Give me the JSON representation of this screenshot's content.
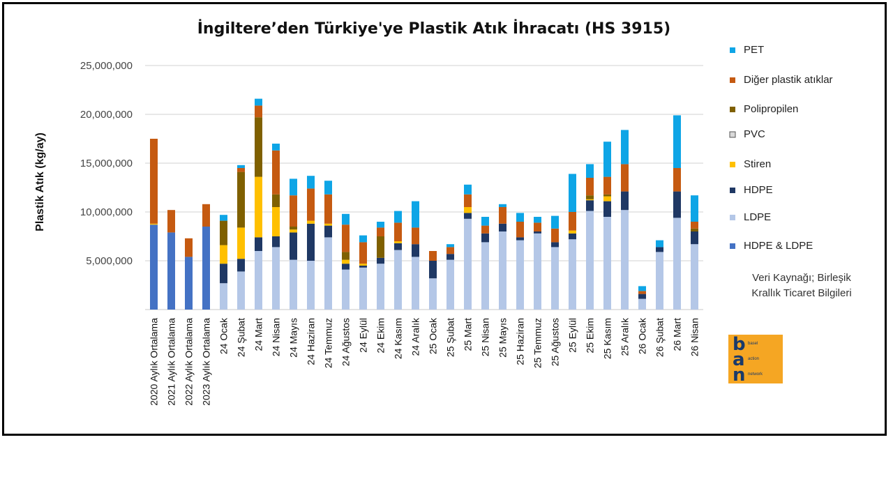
{
  "chart_data": {
    "type": "bar",
    "stacked": true,
    "title": "İngiltere’den Türkiye'ye Plastik Atık İhracatı (HS 3915)",
    "ylabel": "Plastik Atık (kg/ay)",
    "xlabel": "",
    "ylim": [
      0,
      25000000
    ],
    "yticks": [
      5000000,
      10000000,
      15000000,
      20000000,
      25000000
    ],
    "ytick_labels": [
      "5,000,000",
      "10,000,000",
      "15,000,000",
      "20,000,000",
      "25,000,000"
    ],
    "grid": true,
    "legend_position": "right",
    "categories": [
      "2020 Aylık Ortalama",
      "2021 Aylık Ortalama",
      "2022 Aylık Ortalama",
      "2023 Aylık Ortalama",
      "24 Ocak",
      "24 Şubat",
      "24 Mart",
      "24 Nisan",
      "24 Mayıs",
      "24 Haziran",
      "24 Temmuz",
      "24 Ağustos",
      "24 Eylül",
      "24 Ekim",
      "24 Kasım",
      "24 Aralık",
      "25 Ocak",
      "25 Şubat",
      "25 Mart",
      "25 Nisan",
      "25 Mayıs",
      "25 Haziran",
      "25 Temmuz",
      "25 Ağustos",
      "25 Eylül",
      "25 Ekim",
      "25 Kasım",
      "25 Aralık",
      "26 Ocak",
      "26 Şubat",
      "26 Mart",
      "26 Nisan"
    ],
    "series": [
      {
        "name": "HDPE & LDPE",
        "color": "#4472c4",
        "values": [
          8700000,
          7900000,
          5400000,
          8500000,
          0,
          0,
          0,
          0,
          0,
          0,
          0,
          0,
          0,
          0,
          0,
          0,
          0,
          0,
          0,
          0,
          0,
          0,
          0,
          0,
          0,
          0,
          0,
          0,
          0,
          0,
          0,
          0
        ]
      },
      {
        "name": "LDPE",
        "color": "#b4c7e7",
        "values": [
          0,
          0,
          0,
          0,
          2700000,
          3900000,
          6000000,
          6400000,
          5100000,
          5000000,
          7400000,
          4100000,
          4300000,
          4700000,
          6100000,
          5400000,
          3200000,
          5100000,
          9300000,
          6900000,
          8000000,
          7100000,
          7800000,
          6400000,
          7200000,
          10100000,
          9500000,
          10200000,
          1100000,
          5900000,
          9400000,
          6700000
        ]
      },
      {
        "name": "HDPE",
        "color": "#1f3864",
        "values": [
          0,
          0,
          0,
          0,
          2000000,
          1300000,
          1400000,
          1100000,
          2800000,
          3800000,
          1200000,
          600000,
          200000,
          600000,
          700000,
          1300000,
          1800000,
          600000,
          600000,
          900000,
          800000,
          300000,
          200000,
          500000,
          600000,
          1100000,
          1600000,
          1900000,
          500000,
          500000,
          2700000,
          1300000
        ]
      },
      {
        "name": "Stiren",
        "color": "#ffc000",
        "values": [
          100000,
          0,
          0,
          0,
          1900000,
          3200000,
          6200000,
          3000000,
          300000,
          300000,
          200000,
          400000,
          200000,
          0,
          200000,
          0,
          0,
          0,
          600000,
          0,
          0,
          0,
          0,
          0,
          300000,
          100000,
          500000,
          0,
          0,
          0,
          0,
          0
        ]
      },
      {
        "name": "PVC",
        "color": "#d9d9d9",
        "values": [
          0,
          0,
          0,
          0,
          0,
          0,
          0,
          0,
          0,
          0,
          0,
          0,
          0,
          0,
          0,
          0,
          0,
          0,
          0,
          0,
          0,
          0,
          0,
          0,
          0,
          0,
          0,
          0,
          0,
          0,
          0,
          0
        ]
      },
      {
        "name": "Polipropilen",
        "color": "#7f6000",
        "values": [
          0,
          0,
          0,
          0,
          2500000,
          5700000,
          6100000,
          1300000,
          300000,
          0,
          0,
          800000,
          0,
          2200000,
          0,
          0,
          0,
          0,
          0,
          0,
          0,
          0,
          0,
          0,
          0,
          400000,
          200000,
          0,
          0,
          0,
          0,
          300000
        ]
      },
      {
        "name": "Diğer plastik atıklar",
        "color": "#c55a11",
        "values": [
          8700000,
          2300000,
          1900000,
          2300000,
          0,
          400000,
          1200000,
          4500000,
          3200000,
          3300000,
          3000000,
          2800000,
          2200000,
          900000,
          1900000,
          1700000,
          1000000,
          700000,
          1300000,
          800000,
          1700000,
          1600000,
          900000,
          1400000,
          1900000,
          1800000,
          1800000,
          2800000,
          300000,
          0,
          2400000,
          700000
        ]
      },
      {
        "name": "PET",
        "color": "#0ea5e6",
        "values": [
          0,
          0,
          0,
          0,
          600000,
          300000,
          700000,
          700000,
          1700000,
          1300000,
          1400000,
          1100000,
          700000,
          600000,
          1200000,
          2700000,
          0,
          300000,
          1000000,
          900000,
          300000,
          900000,
          600000,
          1300000,
          3900000,
          1400000,
          3600000,
          3500000,
          500000,
          700000,
          5400000,
          2700000
        ]
      }
    ],
    "legend_order": [
      "PET",
      "Diğer plastik atıklar",
      "Polipropilen",
      "PVC",
      "Stiren",
      "HDPE",
      "LDPE",
      "HDPE & LDPE"
    ],
    "source_text": [
      "Veri Kaynağı; Birleşik",
      "Krallık Ticaret Bilgileri"
    ]
  },
  "logo": {
    "letters": [
      "b",
      "a",
      "n"
    ],
    "words": [
      "basel",
      "action",
      "network"
    ],
    "bg_color": "#f5a623"
  }
}
